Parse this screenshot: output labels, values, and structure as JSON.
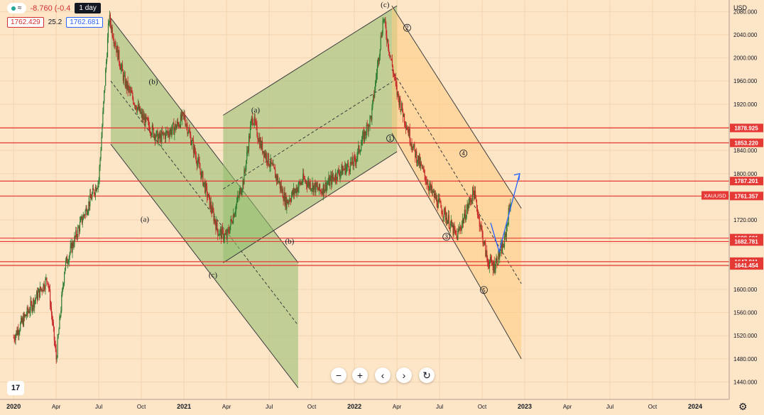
{
  "header": {
    "change": "-8.760 (-0.4",
    "interval_tooltip": "1 day",
    "bid": "1762.429",
    "spread": "25.2",
    "ask": "1762.681"
  },
  "axis": {
    "currency_label": "USD"
  },
  "symbol_tag": "XAUUSD",
  "colors": {
    "levels": "#e53935",
    "bull_channel": "#8fbe6e",
    "bear_channel": "#ffcc80",
    "projection": "#2962ff",
    "candle_up": "#2e7d32",
    "candle_down": "#c62828"
  },
  "chart_data": {
    "type": "candlestick",
    "x_ticks": [
      "2020",
      "Apr",
      "Jul",
      "Oct",
      "2021",
      "Apr",
      "Jul",
      "Oct",
      "2022",
      "Apr",
      "Jul",
      "Oct",
      "2023",
      "Apr",
      "Jul",
      "Oct",
      "2024"
    ],
    "y_ticks": [
      1440,
      1480,
      1520,
      1560,
      1600,
      1640,
      1680,
      1720,
      1760,
      1800,
      1840,
      1880,
      1920,
      1960,
      2000,
      2040,
      2080
    ],
    "y_tick_labels": [
      "1440.000",
      "1480.000",
      "1520.000",
      "1560.000",
      "1600.000",
      "1640.000",
      "1680.000",
      "1720.000",
      "1760.000",
      "1800.000",
      "1840.000",
      "1880.000",
      "1920.000",
      "1960.000",
      "2000.000",
      "2040.000",
      "2080.000"
    ],
    "ylim": [
      1410,
      2100
    ],
    "price_levels": [
      {
        "value": 1878.925,
        "label": "1878.925"
      },
      {
        "value": 1853.22,
        "label": "1853.220"
      },
      {
        "value": 1787.201,
        "label": "1787.201"
      },
      {
        "value": 1761.357,
        "label": "1761.357"
      },
      {
        "value": 1688.601,
        "label": "1688.601"
      },
      {
        "value": 1682.781,
        "label": "1682.781"
      },
      {
        "value": 1647.911,
        "label": "1647.911"
      },
      {
        "value": 1641.454,
        "label": "1641.454"
      }
    ],
    "current_price": 1762.429,
    "price_path": [
      [
        2020.0,
        1517
      ],
      [
        2020.1,
        1570
      ],
      [
        2020.2,
        1620
      ],
      [
        2020.25,
        1480
      ],
      [
        2020.3,
        1640
      ],
      [
        2020.4,
        1720
      ],
      [
        2020.5,
        1790
      ],
      [
        2020.56,
        2070
      ],
      [
        2020.65,
        1960
      ],
      [
        2020.75,
        1900
      ],
      [
        2020.85,
        1860
      ],
      [
        2020.95,
        1880
      ],
      [
        2021.0,
        1900
      ],
      [
        2021.1,
        1800
      ],
      [
        2021.2,
        1700
      ],
      [
        2021.25,
        1690
      ],
      [
        2021.35,
        1790
      ],
      [
        2021.4,
        1900
      ],
      [
        2021.45,
        1850
      ],
      [
        2021.55,
        1790
      ],
      [
        2021.6,
        1750
      ],
      [
        2021.7,
        1790
      ],
      [
        2021.8,
        1770
      ],
      [
        2021.9,
        1800
      ],
      [
        2022.0,
        1820
      ],
      [
        2022.1,
        1900
      ],
      [
        2022.17,
        2070
      ],
      [
        2022.25,
        1940
      ],
      [
        2022.35,
        1840
      ],
      [
        2022.45,
        1770
      ],
      [
        2022.55,
        1720
      ],
      [
        2022.6,
        1690
      ],
      [
        2022.7,
        1770
      ],
      [
        2022.78,
        1650
      ],
      [
        2022.82,
        1640
      ],
      [
        2022.88,
        1680
      ],
      [
        2022.92,
        1762
      ]
    ],
    "wave_labels": [
      {
        "text": "(b)",
        "x": 2020.82,
        "y": 1955
      },
      {
        "text": "(a)",
        "x": 2020.77,
        "y": 1717
      },
      {
        "text": "(c)",
        "x": 2021.17,
        "y": 1621
      },
      {
        "text": "(a)",
        "x": 2021.42,
        "y": 1906
      },
      {
        "text": "(b)",
        "x": 2021.62,
        "y": 1679
      },
      {
        "text": "(c)",
        "x": 2022.18,
        "y": 2088
      },
      {
        "text": "1",
        "x": 2022.21,
        "y": 1861
      },
      {
        "text": "2",
        "x": 2022.31,
        "y": 2052
      },
      {
        "text": "3",
        "x": 2022.54,
        "y": 1691
      },
      {
        "text": "4",
        "x": 2022.64,
        "y": 1835
      },
      {
        "text": "5",
        "x": 2022.76,
        "y": 1599
      }
    ],
    "channels": [
      {
        "name": "",
        "color": "#8fbe6e",
        "upper": [
          [
            2020.57,
            2069
          ],
          [
            2021.67,
            1646
          ]
        ],
        "lower": [
          [
            2020.57,
            1851
          ],
          [
            2021.67,
            1430
          ]
        ]
      },
      {
        "name": "",
        "color": "#8fbe6e",
        "upper": [
          [
            2021.23,
            1901
          ],
          [
            2022.25,
            2090
          ]
        ],
        "lower": [
          [
            2021.23,
            1646
          ],
          [
            2022.25,
            1838
          ]
        ]
      },
      {
        "name": "",
        "color": "#ffcc80",
        "upper": [
          [
            2022.22,
            2090
          ],
          [
            2022.98,
            1740
          ]
        ],
        "lower": [
          [
            2022.22,
            1870
          ],
          [
            2022.98,
            1480
          ]
        ]
      }
    ]
  },
  "controls": {
    "zoom_out": "−",
    "zoom_in": "+",
    "scroll_left": "‹",
    "scroll_right": "›",
    "reset": "↻"
  }
}
